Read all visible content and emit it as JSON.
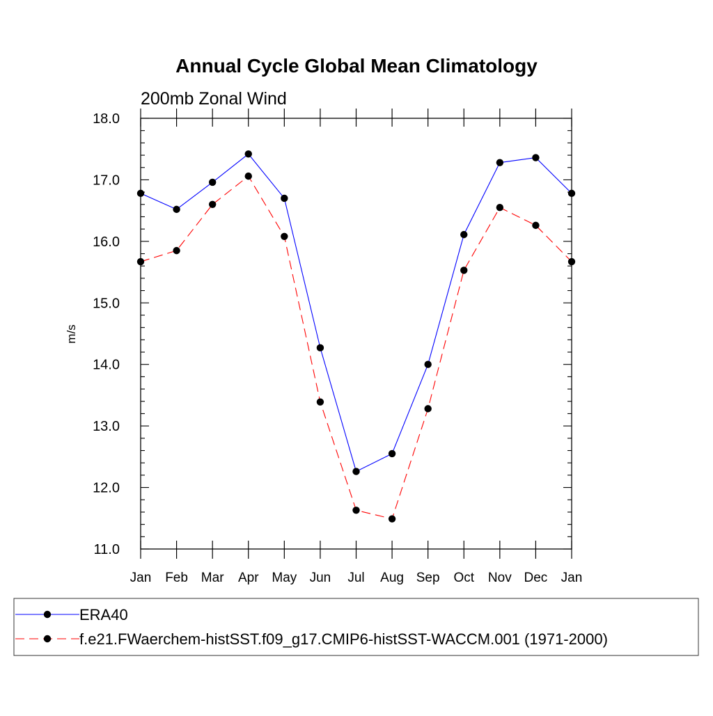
{
  "chart_data": {
    "type": "line",
    "title": "Annual Cycle Global Mean Climatology",
    "subtitle": "200mb Zonal Wind",
    "xlabel": "",
    "ylabel": "m/s",
    "categories": [
      "Jan",
      "Feb",
      "Mar",
      "Apr",
      "May",
      "Jun",
      "Jul",
      "Aug",
      "Sep",
      "Oct",
      "Nov",
      "Dec",
      "Jan"
    ],
    "ylim": [
      11.0,
      18.0
    ],
    "yticks": [
      "11.0",
      "12.0",
      "13.0",
      "14.0",
      "15.0",
      "16.0",
      "17.0",
      "18.0"
    ],
    "grid": false,
    "legend_position": "bottom",
    "series": [
      {
        "name": "ERA40",
        "color": "#0000ff",
        "dash": "solid",
        "values": [
          16.78,
          16.52,
          16.96,
          17.42,
          16.7,
          14.27,
          12.26,
          12.55,
          14.0,
          16.11,
          17.28,
          17.36,
          16.78
        ]
      },
      {
        "name": "f.e21.FWaerchem-histSST.f09_g17.CMIP6-histSST-WACCM.001 (1971-2000)",
        "color": "#ff0000",
        "dash": "dashed",
        "values": [
          15.67,
          15.85,
          16.6,
          17.06,
          16.08,
          13.39,
          11.63,
          11.49,
          13.28,
          15.53,
          16.55,
          16.26,
          15.67
        ]
      }
    ]
  }
}
